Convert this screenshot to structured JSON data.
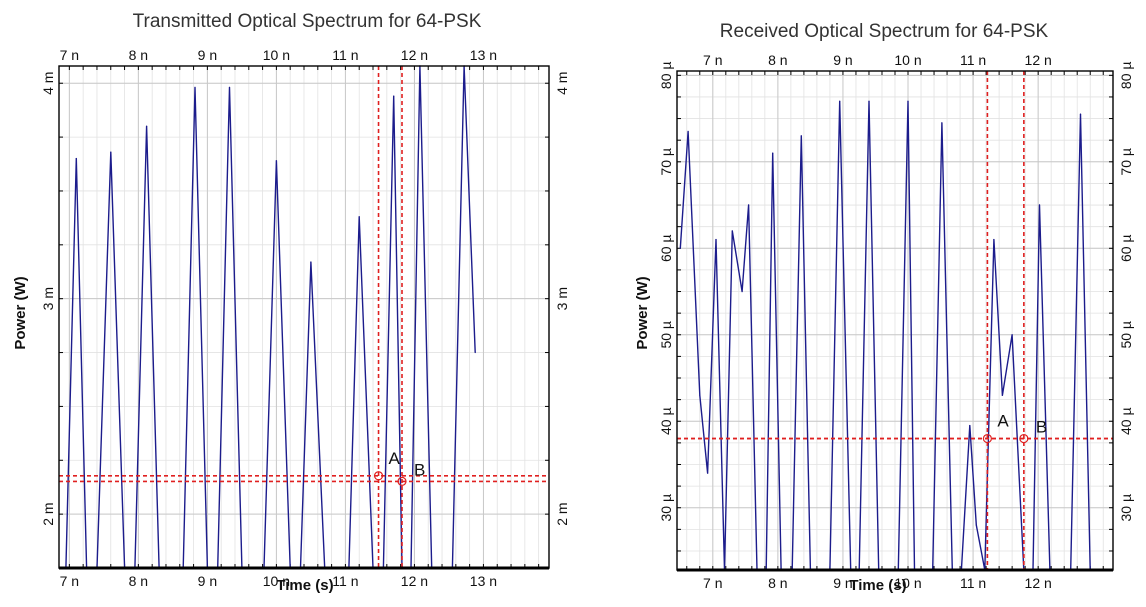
{
  "chart_data": [
    {
      "type": "line",
      "title": "Transmitted Optical Spectrum for 64-PSK",
      "xlabel": "Time (s)",
      "ylabel": "Power (W)",
      "xlim": [
        6.85e-09,
        1.395e-08
      ],
      "ylim": [
        0.00175,
        0.00408
      ],
      "grid": true,
      "x_ticks": [
        {
          "v": 7e-09,
          "label": "7 n"
        },
        {
          "v": 8e-09,
          "label": "8 n"
        },
        {
          "v": 9e-09,
          "label": "9 n"
        },
        {
          "v": 1e-08,
          "label": "10 n"
        },
        {
          "v": 1.1e-08,
          "label": "11 n"
        },
        {
          "v": 1.2e-08,
          "label": "12 n"
        },
        {
          "v": 1.3e-08,
          "label": "13 n"
        }
      ],
      "y_ticks": [
        {
          "v": 0.002,
          "label": "2 m"
        },
        {
          "v": 0.003,
          "label": "3 m"
        },
        {
          "v": 0.004,
          "label": "4 m"
        }
      ],
      "series": [
        {
          "color": "#1c1c8c",
          "x": [
            6.85e-09,
            6.95e-09,
            7.1e-09,
            7.25e-09,
            7.4e-09,
            7.6e-09,
            7.8e-09,
            7.95e-09,
            8.12e-09,
            8.3e-09,
            8.5e-09,
            8.65e-09,
            8.82e-09,
            9e-09,
            9.15e-09,
            9.32e-09,
            9.5e-09,
            9.65e-09,
            9.82e-09,
            1e-08,
            1.02e-08,
            1.035e-08,
            1.05e-08,
            1.07e-08,
            1.09e-08,
            1.105e-08,
            1.12e-08,
            1.14e-08,
            1.155e-08,
            1.17e-08,
            1.182e-08,
            1.195e-08,
            1.208e-08,
            1.225e-08,
            1.24e-08,
            1.255e-08,
            1.272e-08,
            1.288e-08
          ],
          "y": [
            0.00175,
            0.00175,
            0.00365,
            0.00175,
            0.00175,
            0.00368,
            0.00175,
            0.00175,
            0.0038,
            0.00175,
            0.00175,
            0.00175,
            0.00398,
            0.00175,
            0.00175,
            0.00398,
            0.00175,
            0.00175,
            0.00175,
            0.00364,
            0.00175,
            0.00175,
            0.00317,
            0.00175,
            0.00175,
            0.00175,
            0.00338,
            0.00175,
            0.00175,
            0.00394,
            0.00175,
            0.00175,
            0.00408,
            0.00175,
            0.00175,
            0.00175,
            0.00408,
            0.00275
          ]
        }
      ],
      "cursors": {
        "color": "#e02020",
        "A": {
          "label": "A",
          "x": 1.148e-08,
          "y": 0.002178
        },
        "B": {
          "label": "B",
          "x": 1.182e-08,
          "y": 0.002152
        }
      }
    },
    {
      "type": "line",
      "title": "Received Optical Spectrum for 64-PSK",
      "xlabel": "Time (s)",
      "ylabel": "Power (W)",
      "xlim": [
        6.45e-09,
        1.315e-08
      ],
      "ylim": [
        2.28e-05,
        8.05e-05
      ],
      "grid": true,
      "x_ticks": [
        {
          "v": 7e-09,
          "label": "7 n"
        },
        {
          "v": 8e-09,
          "label": "8 n"
        },
        {
          "v": 9e-09,
          "label": "9 n"
        },
        {
          "v": 1e-08,
          "label": "10 n"
        },
        {
          "v": 1.1e-08,
          "label": "11 n"
        },
        {
          "v": 1.2e-08,
          "label": "12 n"
        }
      ],
      "y_ticks": [
        {
          "v": 3e-05,
          "label": "30 µ"
        },
        {
          "v": 4e-05,
          "label": "40 µ"
        },
        {
          "v": 5e-05,
          "label": "50 µ"
        },
        {
          "v": 6e-05,
          "label": "60 µ"
        },
        {
          "v": 7e-05,
          "label": "70 µ"
        },
        {
          "v": 8e-05,
          "label": "80 µ"
        }
      ],
      "series": [
        {
          "color": "#1c1c8c",
          "x": [
            6.5e-09,
            6.62e-09,
            6.8e-09,
            6.92e-09,
            7.05e-09,
            7.18e-09,
            7.3e-09,
            7.45e-09,
            7.55e-09,
            7.68e-09,
            7.82e-09,
            7.92e-09,
            8.05e-09,
            8.22e-09,
            8.36e-09,
            8.5e-09,
            8.65e-09,
            8.8e-09,
            8.95e-09,
            9.12e-09,
            9.25e-09,
            9.4e-09,
            9.55e-09,
            9.72e-09,
            9.85e-09,
            1e-08,
            1.01e-08,
            1.025e-08,
            1.038e-08,
            1.052e-08,
            1.068e-08,
            1.082e-08,
            1.095e-08,
            1.105e-08,
            1.118e-08,
            1.132e-08,
            1.145e-08,
            1.16e-08,
            1.178e-08,
            1.192e-08,
            1.202e-08,
            1.218e-08,
            1.235e-08,
            1.25e-08,
            1.265e-08,
            1.28e-08,
            1.295e-08
          ],
          "y": [
            6e-05,
            7.35e-05,
            4.3e-05,
            3.4e-05,
            6.1e-05,
            2.28e-05,
            6.2e-05,
            5.5e-05,
            6.5e-05,
            2.28e-05,
            2.28e-05,
            7.1e-05,
            2.28e-05,
            2.28e-05,
            7.3e-05,
            2.28e-05,
            2.28e-05,
            2.28e-05,
            7.7e-05,
            2.28e-05,
            2.28e-05,
            7.7e-05,
            2.28e-05,
            2.28e-05,
            2.28e-05,
            7.7e-05,
            2.28e-05,
            2.28e-05,
            2.28e-05,
            7.45e-05,
            2.28e-05,
            2.28e-05,
            3.95e-05,
            2.8e-05,
            2.28e-05,
            6.1e-05,
            4.3e-05,
            5e-05,
            2.28e-05,
            2.28e-05,
            6.5e-05,
            2.28e-05,
            2.28e-05,
            2.28e-05,
            7.55e-05,
            2.28e-05,
            2.28e-05
          ]
        }
      ],
      "cursors": {
        "color": "#e02020",
        "A": {
          "label": "A",
          "x": 1.122e-08,
          "y": 3.8e-05
        },
        "B": {
          "label": "B",
          "x": 1.178e-08,
          "y": 3.8e-05
        }
      }
    }
  ]
}
